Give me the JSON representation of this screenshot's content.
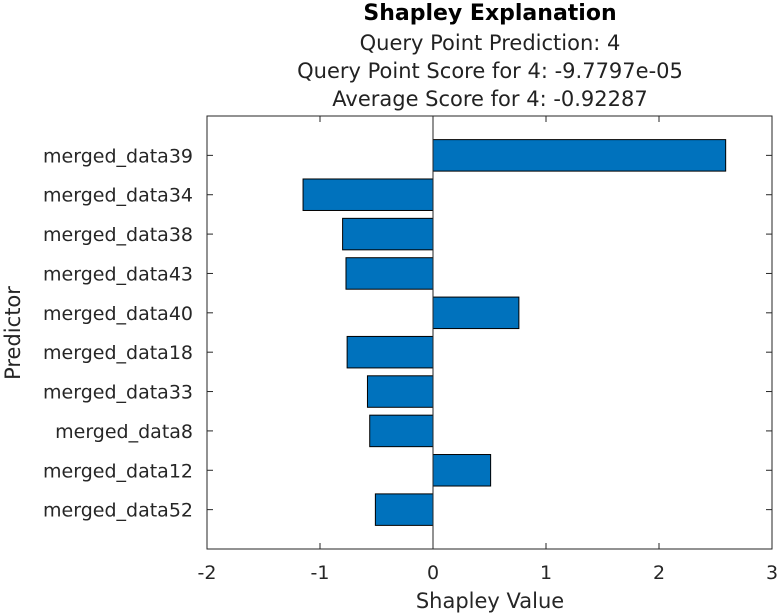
{
  "chart_data": {
    "type": "bar",
    "orientation": "horizontal",
    "title": "Shapley Explanation",
    "subtitle": [
      "Query Point Prediction: 4",
      "Query Point Score for 4: -9.7797e-05",
      "Average Score for 4: -0.92287"
    ],
    "xlabel": "Shapley Value",
    "ylabel": "Predictor",
    "xlim": [
      -2,
      3
    ],
    "xticks": [
      "-2",
      "-1",
      "0",
      "1",
      "2",
      "3"
    ],
    "grid": false,
    "bar_color": "#0072BD",
    "categories": [
      "merged_data39",
      "merged_data34",
      "merged_data38",
      "merged_data43",
      "merged_data40",
      "merged_data18",
      "merged_data33",
      "merged_data8",
      "merged_data12",
      "merged_data52"
    ],
    "values": [
      2.59,
      -1.15,
      -0.8,
      -0.77,
      0.76,
      -0.76,
      -0.58,
      -0.56,
      0.51,
      -0.51
    ]
  }
}
